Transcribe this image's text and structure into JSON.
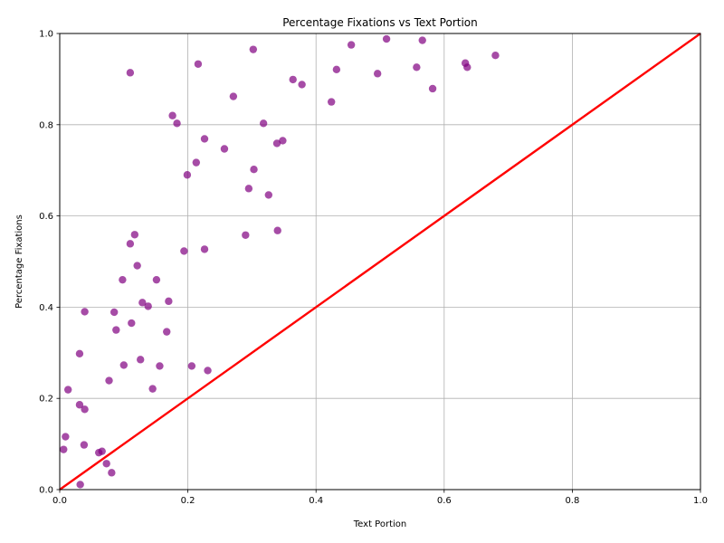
{
  "chart_data": {
    "type": "scatter",
    "title": "Percentage Fixations vs Text Portion",
    "xlabel": "Text Portion",
    "ylabel": "Percentage Fixations",
    "xlim": [
      0,
      1
    ],
    "ylim": [
      0,
      1
    ],
    "xticks": [
      "0.0",
      "0.2",
      "0.4",
      "0.6",
      "0.8",
      "1.0"
    ],
    "yticks": [
      "0.0",
      "0.2",
      "0.4",
      "0.6",
      "0.8",
      "1.0"
    ],
    "grid": true,
    "point_color": "#800080",
    "line_color": "#ff0000",
    "reference_line": [
      [
        0,
        0
      ],
      [
        1,
        1
      ]
    ],
    "points": [
      [
        0.51,
        0.988
      ],
      [
        0.566,
        0.985
      ],
      [
        0.302,
        0.965
      ],
      [
        0.455,
        0.975
      ],
      [
        0.216,
        0.933
      ],
      [
        0.11,
        0.914
      ],
      [
        0.432,
        0.921
      ],
      [
        0.496,
        0.912
      ],
      [
        0.557,
        0.926
      ],
      [
        0.633,
        0.935
      ],
      [
        0.636,
        0.926
      ],
      [
        0.68,
        0.952
      ],
      [
        0.364,
        0.899
      ],
      [
        0.378,
        0.888
      ],
      [
        0.582,
        0.879
      ],
      [
        0.271,
        0.862
      ],
      [
        0.424,
        0.85
      ],
      [
        0.176,
        0.82
      ],
      [
        0.183,
        0.803
      ],
      [
        0.318,
        0.803
      ],
      [
        0.226,
        0.769
      ],
      [
        0.348,
        0.765
      ],
      [
        0.339,
        0.759
      ],
      [
        0.257,
        0.747
      ],
      [
        0.213,
        0.717
      ],
      [
        0.303,
        0.702
      ],
      [
        0.199,
        0.69
      ],
      [
        0.295,
        0.66
      ],
      [
        0.326,
        0.646
      ],
      [
        0.34,
        0.568
      ],
      [
        0.117,
        0.559
      ],
      [
        0.29,
        0.558
      ],
      [
        0.11,
        0.539
      ],
      [
        0.226,
        0.527
      ],
      [
        0.194,
        0.523
      ],
      [
        0.121,
        0.491
      ],
      [
        0.098,
        0.46
      ],
      [
        0.151,
        0.46
      ],
      [
        0.17,
        0.413
      ],
      [
        0.129,
        0.41
      ],
      [
        0.138,
        0.402
      ],
      [
        0.039,
        0.39
      ],
      [
        0.085,
        0.389
      ],
      [
        0.112,
        0.365
      ],
      [
        0.088,
        0.35
      ],
      [
        0.167,
        0.346
      ],
      [
        0.031,
        0.298
      ],
      [
        0.126,
        0.285
      ],
      [
        0.1,
        0.273
      ],
      [
        0.156,
        0.271
      ],
      [
        0.206,
        0.271
      ],
      [
        0.231,
        0.261
      ],
      [
        0.077,
        0.239
      ],
      [
        0.145,
        0.221
      ],
      [
        0.013,
        0.219
      ],
      [
        0.031,
        0.186
      ],
      [
        0.039,
        0.176
      ],
      [
        0.009,
        0.116
      ],
      [
        0.038,
        0.098
      ],
      [
        0.006,
        0.088
      ],
      [
        0.066,
        0.084
      ],
      [
        0.061,
        0.081
      ],
      [
        0.073,
        0.057
      ],
      [
        0.081,
        0.037
      ],
      [
        0.032,
        0.011
      ]
    ]
  }
}
